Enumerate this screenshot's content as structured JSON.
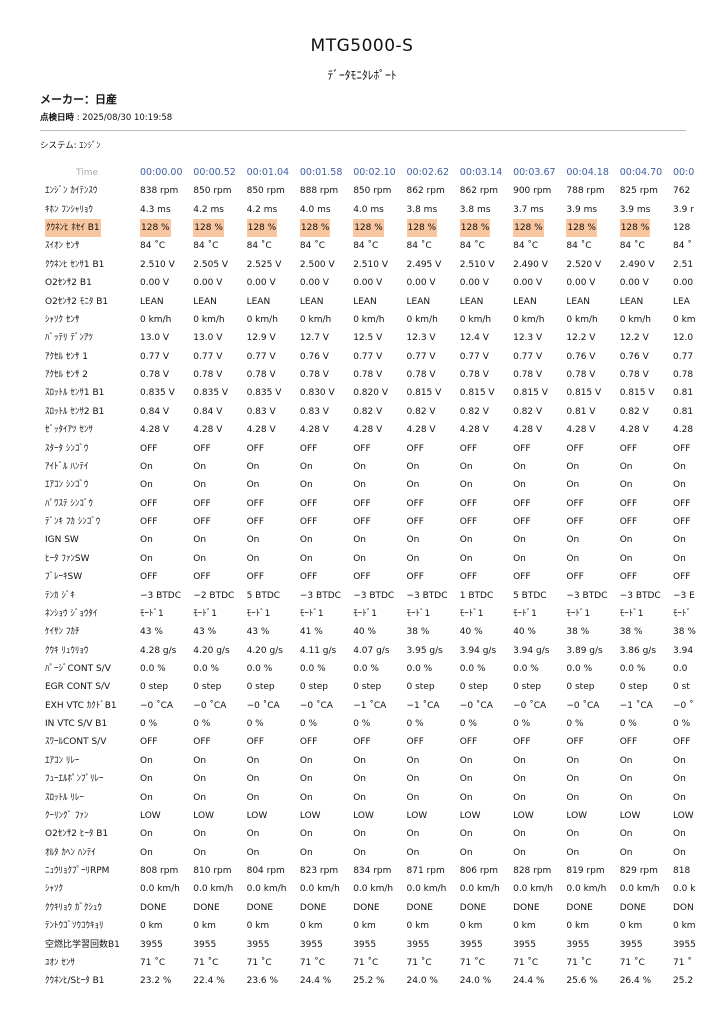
{
  "header": {
    "title": "MTG5000-S",
    "subtitle": "ﾃﾞｰﾀﾓﾆﾀﾚﾎﾟｰﾄ",
    "maker": "メーカー：日産",
    "date_label": "点検日時",
    "date_value": " : 2025/08/30 10:19:58",
    "system": "システム: ｴﾝｼﾞﾝ"
  },
  "colors": {
    "time_header": "#3f5fa3",
    "highlight": "#f8c6a0"
  },
  "table": {
    "time_label": "Time",
    "times": [
      "00:00.00",
      "00:00.52",
      "00:01.04",
      "00:01.58",
      "00:02.10",
      "00:02.62",
      "00:03.14",
      "00:03.67",
      "00:04.18",
      "00:04.70",
      "00:0"
    ],
    "rows": [
      {
        "label": "ｴﾝｼﾞﾝ ｶｲﾃﾝｽｳ",
        "values": [
          "838 rpm",
          "850 rpm",
          "850 rpm",
          "888 rpm",
          "850 rpm",
          "862 rpm",
          "862 rpm",
          "900 rpm",
          "788 rpm",
          "825 rpm",
          "762"
        ]
      },
      {
        "label": "ｷﾎﾝ ﾌﾝｼｬﾘｮｳ",
        "values": [
          "4.3 ms",
          "4.2 ms",
          "4.2 ms",
          "4.0 ms",
          "4.0 ms",
          "3.8 ms",
          "3.8 ms",
          "3.7 ms",
          "3.9 ms",
          "3.9 ms",
          "3.9 r"
        ]
      },
      {
        "label": "ｸｳﾈﾝﾋ ﾎｾｲ B1",
        "highlight": true,
        "values": [
          "128 %",
          "128 %",
          "128 %",
          "128 %",
          "128 %",
          "128 %",
          "128 %",
          "128 %",
          "128 %",
          "128 %",
          "128"
        ]
      },
      {
        "label": "ｽｲｵﾝ ｾﾝｻ",
        "values": [
          "84 ˚C",
          "84 ˚C",
          "84 ˚C",
          "84 ˚C",
          "84 ˚C",
          "84 ˚C",
          "84 ˚C",
          "84 ˚C",
          "84 ˚C",
          "84 ˚C",
          "84 ˚"
        ]
      },
      {
        "label": "ｸｳﾈﾝﾋ ｾﾝｻ1 B1",
        "values": [
          "2.510 V",
          "2.505 V",
          "2.525 V",
          "2.500 V",
          "2.510 V",
          "2.495 V",
          "2.510 V",
          "2.490 V",
          "2.520 V",
          "2.490 V",
          "2.51"
        ]
      },
      {
        "label": "O2ｾﾝｻ2 B1",
        "values": [
          "0.00 V",
          "0.00 V",
          "0.00 V",
          "0.00 V",
          "0.00 V",
          "0.00 V",
          "0.00 V",
          "0.00 V",
          "0.00 V",
          "0.00 V",
          "0.00"
        ]
      },
      {
        "label": "O2ｾﾝｻ2 ﾓﾆﾀ B1",
        "values": [
          "LEAN",
          "LEAN",
          "LEAN",
          "LEAN",
          "LEAN",
          "LEAN",
          "LEAN",
          "LEAN",
          "LEAN",
          "LEAN",
          "LEA"
        ]
      },
      {
        "label": "ｼｬｿｸ ｾﾝｻ",
        "values": [
          "0 km/h",
          "0 km/h",
          "0 km/h",
          "0 km/h",
          "0 km/h",
          "0 km/h",
          "0 km/h",
          "0 km/h",
          "0 km/h",
          "0 km/h",
          "0 km"
        ]
      },
      {
        "label": "ﾊﾞｯﾃﾘ ﾃﾞﾝｱﾂ",
        "values": [
          "13.0 V",
          "13.0 V",
          "12.9 V",
          "12.7 V",
          "12.5 V",
          "12.3 V",
          "12.4 V",
          "12.3 V",
          "12.2 V",
          "12.2 V",
          "12.0"
        ]
      },
      {
        "label": "ｱｸｾﾙ ｾﾝｻ 1",
        "values": [
          "0.77 V",
          "0.77 V",
          "0.77 V",
          "0.76 V",
          "0.77 V",
          "0.77 V",
          "0.77 V",
          "0.77 V",
          "0.76 V",
          "0.76 V",
          "0.77"
        ]
      },
      {
        "label": "ｱｸｾﾙ ｾﾝｻ 2",
        "values": [
          "0.78 V",
          "0.78 V",
          "0.78 V",
          "0.78 V",
          "0.78 V",
          "0.78 V",
          "0.78 V",
          "0.78 V",
          "0.78 V",
          "0.78 V",
          "0.78"
        ]
      },
      {
        "label": "ｽﾛｯﾄﾙ ｾﾝｻ1 B1",
        "values": [
          "0.835 V",
          "0.835 V",
          "0.835 V",
          "0.830 V",
          "0.820 V",
          "0.815 V",
          "0.815 V",
          "0.815 V",
          "0.815 V",
          "0.815 V",
          "0.81"
        ]
      },
      {
        "label": "ｽﾛｯﾄﾙ ｾﾝｻ2 B1",
        "values": [
          "0.84 V",
          "0.84 V",
          "0.83 V",
          "0.83 V",
          "0.82 V",
          "0.82 V",
          "0.82 V",
          "0.82 V",
          "0.81 V",
          "0.82 V",
          "0.81"
        ]
      },
      {
        "label": "ｾﾞｯﾀｲｱﾂ ｾﾝｻ",
        "values": [
          "4.28 V",
          "4.28 V",
          "4.28 V",
          "4.28 V",
          "4.28 V",
          "4.28 V",
          "4.28 V",
          "4.28 V",
          "4.28 V",
          "4.28 V",
          "4.28"
        ]
      },
      {
        "label": "ｽﾀｰﾀ ｼﾝｺﾞｳ",
        "values": [
          "OFF",
          "OFF",
          "OFF",
          "OFF",
          "OFF",
          "OFF",
          "OFF",
          "OFF",
          "OFF",
          "OFF",
          "OFF"
        ]
      },
      {
        "label": "ｱｲﾄﾞﾙ ﾊﾝﾃｲ",
        "values": [
          "On",
          "On",
          "On",
          "On",
          "On",
          "On",
          "On",
          "On",
          "On",
          "On",
          "On"
        ]
      },
      {
        "label": "ｴｱｺﾝ ｼﾝｺﾞｳ",
        "values": [
          "On",
          "On",
          "On",
          "On",
          "On",
          "On",
          "On",
          "On",
          "On",
          "On",
          "On"
        ]
      },
      {
        "label": "ﾊﾟﾜｽﾃ ｼﾝｺﾞｳ",
        "values": [
          "OFF",
          "OFF",
          "OFF",
          "OFF",
          "OFF",
          "OFF",
          "OFF",
          "OFF",
          "OFF",
          "OFF",
          "OFF"
        ]
      },
      {
        "label": "ﾃﾞﾝｷ ﾌｶ ｼﾝｺﾞｳ",
        "values": [
          "OFF",
          "OFF",
          "OFF",
          "OFF",
          "OFF",
          "OFF",
          "OFF",
          "OFF",
          "OFF",
          "OFF",
          "OFF"
        ]
      },
      {
        "label": "IGN SW",
        "values": [
          "On",
          "On",
          "On",
          "On",
          "On",
          "On",
          "On",
          "On",
          "On",
          "On",
          "On"
        ]
      },
      {
        "label": "ﾋｰﾀ ﾌｧﾝSW",
        "values": [
          "On",
          "On",
          "On",
          "On",
          "On",
          "On",
          "On",
          "On",
          "On",
          "On",
          "On"
        ]
      },
      {
        "label": "ﾌﾞﾚｰｷSW",
        "values": [
          "OFF",
          "OFF",
          "OFF",
          "OFF",
          "OFF",
          "OFF",
          "OFF",
          "OFF",
          "OFF",
          "OFF",
          "OFF"
        ]
      },
      {
        "label": "ﾃﾝｶ ｼﾞｷ",
        "values": [
          "−3 BTDC",
          "−2 BTDC",
          "5 BTDC",
          "−3 BTDC",
          "−3 BTDC",
          "−3 BTDC",
          "1 BTDC",
          "5 BTDC",
          "−3 BTDC",
          "−3 BTDC",
          "−3 E"
        ]
      },
      {
        "label": "ﾈﾝｼｮｳ ｼﾞｮｳﾀｲ",
        "values": [
          "ﾓｰﾄﾞ1",
          "ﾓｰﾄﾞ1",
          "ﾓｰﾄﾞ1",
          "ﾓｰﾄﾞ1",
          "ﾓｰﾄﾞ1",
          "ﾓｰﾄﾞ1",
          "ﾓｰﾄﾞ1",
          "ﾓｰﾄﾞ1",
          "ﾓｰﾄﾞ1",
          "ﾓｰﾄﾞ1",
          "ﾓｰﾄﾞ"
        ]
      },
      {
        "label": "ｹｲｻﾝ ﾌｶﾁ",
        "values": [
          "43 %",
          "43 %",
          "43 %",
          "41 %",
          "40 %",
          "38 %",
          "40 %",
          "40 %",
          "38 %",
          "38 %",
          "38 %"
        ]
      },
      {
        "label": "ｸｳｷ ﾘｭｳﾘｮｳ",
        "values": [
          "4.28 g/s",
          "4.20 g/s",
          "4.20 g/s",
          "4.11 g/s",
          "4.07 g/s",
          "3.95 g/s",
          "3.94 g/s",
          "3.94 g/s",
          "3.89 g/s",
          "3.86 g/s",
          "3.94"
        ]
      },
      {
        "label": "ﾊﾟｰｼﾞCONT S/V",
        "values": [
          "0.0 %",
          "0.0 %",
          "0.0 %",
          "0.0 %",
          "0.0 %",
          "0.0 %",
          "0.0 %",
          "0.0 %",
          "0.0 %",
          "0.0 %",
          "0.0"
        ]
      },
      {
        "label": "EGR CONT S/V",
        "values": [
          "0 step",
          "0 step",
          "0 step",
          "0 step",
          "0 step",
          "0 step",
          "0 step",
          "0 step",
          "0 step",
          "0 step",
          "0 st"
        ]
      },
      {
        "label": "EXH VTC ｶｸﾄﾞB1",
        "values": [
          "−0 ˚CA",
          "−0 ˚CA",
          "−0 ˚CA",
          "−0 ˚CA",
          "−1 ˚CA",
          "−1 ˚CA",
          "−0 ˚CA",
          "−0 ˚CA",
          "−0 ˚CA",
          "−1 ˚CA",
          "−0 ˚"
        ]
      },
      {
        "label": "IN VTC S/V B1",
        "values": [
          "0 %",
          "0 %",
          "0 %",
          "0 %",
          "0 %",
          "0 %",
          "0 %",
          "0 %",
          "0 %",
          "0 %",
          "0 %"
        ]
      },
      {
        "label": "ｽﾜｰﾙCONT S/V",
        "values": [
          "OFF",
          "OFF",
          "OFF",
          "OFF",
          "OFF",
          "OFF",
          "OFF",
          "OFF",
          "OFF",
          "OFF",
          "OFF"
        ]
      },
      {
        "label": "ｴｱｺﾝ ﾘﾚｰ",
        "values": [
          "On",
          "On",
          "On",
          "On",
          "On",
          "On",
          "On",
          "On",
          "On",
          "On",
          "On"
        ]
      },
      {
        "label": "ﾌｭｰｴﾙﾎﾟﾝﾌﾟﾘﾚｰ",
        "values": [
          "On",
          "On",
          "On",
          "On",
          "On",
          "On",
          "On",
          "On",
          "On",
          "On",
          "On"
        ]
      },
      {
        "label": "ｽﾛｯﾄﾙ ﾘﾚｰ",
        "values": [
          "On",
          "On",
          "On",
          "On",
          "On",
          "On",
          "On",
          "On",
          "On",
          "On",
          "On"
        ]
      },
      {
        "label": "ｸｰﾘﾝｸﾞ ﾌｧﾝ",
        "values": [
          "LOW",
          "LOW",
          "LOW",
          "LOW",
          "LOW",
          "LOW",
          "LOW",
          "LOW",
          "LOW",
          "LOW",
          "LOW"
        ]
      },
      {
        "label": "O2ｾﾝｻ2 ﾋｰﾀ B1",
        "values": [
          "On",
          "On",
          "On",
          "On",
          "On",
          "On",
          "On",
          "On",
          "On",
          "On",
          "On"
        ]
      },
      {
        "label": "ｵﾙﾀ ｶﾍﾝ ﾊﾝﾃｲ",
        "values": [
          "On",
          "On",
          "On",
          "On",
          "On",
          "On",
          "On",
          "On",
          "On",
          "On",
          "On"
        ]
      },
      {
        "label": "ﾆｭｳﾘｮｸﾌﾟｰﾘRPM",
        "values": [
          "808 rpm",
          "810 rpm",
          "804 rpm",
          "823 rpm",
          "834 rpm",
          "871 rpm",
          "806 rpm",
          "828 rpm",
          "819 rpm",
          "829 rpm",
          "818"
        ]
      },
      {
        "label": "ｼｬｿｸ",
        "values": [
          "0.0 km/h",
          "0.0 km/h",
          "0.0 km/h",
          "0.0 km/h",
          "0.0 km/h",
          "0.0 km/h",
          "0.0 km/h",
          "0.0 km/h",
          "0.0 km/h",
          "0.0 km/h",
          "0.0 k"
        ]
      },
      {
        "label": "ｸｳｷﾘｮｳ ｶﾞｸｼｭｳ",
        "values": [
          "DONE",
          "DONE",
          "DONE",
          "DONE",
          "DONE",
          "DONE",
          "DONE",
          "DONE",
          "DONE",
          "DONE",
          "DON"
        ]
      },
      {
        "label": "ﾃﾝﾄｳｺﾞｿｳｺｳｷｮﾘ",
        "values": [
          "0 km",
          "0 km",
          "0 km",
          "0 km",
          "0 km",
          "0 km",
          "0 km",
          "0 km",
          "0 km",
          "0 km",
          "0 km"
        ]
      },
      {
        "label": "空燃比学習回数B1",
        "values": [
          "3955",
          "3955",
          "3955",
          "3955",
          "3955",
          "3955",
          "3955",
          "3955",
          "3955",
          "3955",
          "3955"
        ]
      },
      {
        "label": "ﾕｵﾝ ｾﾝｻ",
        "values": [
          "71 ˚C",
          "71 ˚C",
          "71 ˚C",
          "71 ˚C",
          "71 ˚C",
          "71 ˚C",
          "71 ˚C",
          "71 ˚C",
          "71 ˚C",
          "71 ˚C",
          "71 ˚"
        ]
      },
      {
        "label": "ｸｳﾈﾝﾋ/Sﾋｰﾀ B1",
        "values": [
          "23.2 %",
          "22.4 %",
          "23.6 %",
          "24.4 %",
          "25.2 %",
          "24.0 %",
          "24.0 %",
          "24.4 %",
          "25.6 %",
          "26.4 %",
          "25.2"
        ]
      }
    ]
  }
}
